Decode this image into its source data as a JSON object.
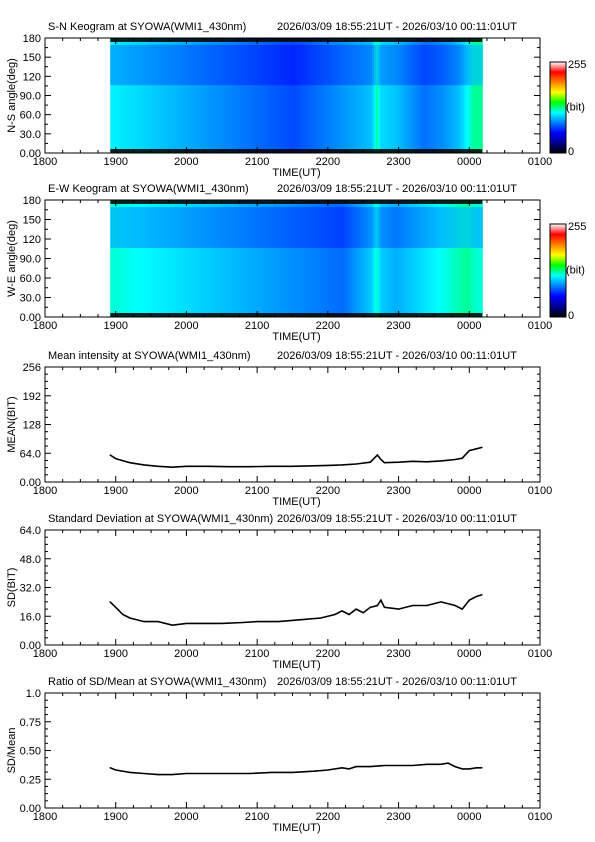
{
  "colors": {
    "background": "#ffffff",
    "axes": "#000000",
    "line": "#000000",
    "colormap": [
      "#000000",
      "#000090",
      "#0000ff",
      "#0080ff",
      "#00ffff",
      "#00ff00",
      "#ffff00",
      "#ff8000",
      "#ff0000",
      "#ffffff"
    ]
  },
  "chart_data": [
    {
      "type": "heatmap",
      "title": "S-N Keogram at SYOWA(WMI1_430nm)",
      "time_range": "2026/03/09 18:55:21UT - 2026/03/10 00:11:01UT",
      "xlabel": "TIME(UT)",
      "ylabel": "N-S angle(deg)",
      "x_ticks": [
        "1800",
        "1900",
        "2000",
        "2100",
        "2200",
        "2300",
        "0000",
        "0100"
      ],
      "y_ticks": [
        "0.00",
        "30.0",
        "60.0",
        "90.0",
        "120",
        "150",
        "180"
      ],
      "xlim_hours": [
        18,
        25
      ],
      "ylim": [
        0,
        180
      ],
      "data_x_hours": [
        18.923,
        24.184
      ],
      "colorbar": {
        "min": "0",
        "max": "255",
        "unit": "(bit)"
      },
      "bright_times": [
        18.96,
        21.5,
        22.61,
        22.68,
        22.73,
        22.97,
        23.15,
        23.35,
        23.6,
        23.85,
        24.05
      ],
      "bright_values": [
        0.55,
        0.3,
        0.48,
        0.65,
        0.52,
        0.48,
        0.42,
        0.36,
        0.4,
        0.48,
        0.65
      ]
    },
    {
      "type": "heatmap",
      "title": "E-W Keogram at SYOWA(WMI1_430nm)",
      "time_range": "2026/03/09 18:55:21UT - 2026/03/10 00:11:01UT",
      "xlabel": "TIME(UT)",
      "ylabel": "W-E angle(deg)",
      "x_ticks": [
        "1800",
        "1900",
        "2000",
        "2100",
        "2200",
        "2300",
        "0000",
        "0100"
      ],
      "y_ticks": [
        "0.00",
        "30.0",
        "60.0",
        "90.0",
        "120",
        "150",
        "180"
      ],
      "xlim_hours": [
        18,
        25
      ],
      "ylim": [
        0,
        180
      ],
      "data_x_hours": [
        18.923,
        24.184
      ],
      "colorbar": {
        "min": "0",
        "max": "255",
        "unit": "(bit)"
      },
      "bright_times": [
        18.96,
        22.2,
        22.61,
        22.68,
        22.73,
        22.95,
        23.2,
        23.45,
        23.7,
        23.95,
        24.1
      ],
      "bright_values": [
        0.6,
        0.35,
        0.5,
        0.62,
        0.5,
        0.45,
        0.5,
        0.55,
        0.6,
        0.65,
        0.6
      ]
    },
    {
      "type": "line",
      "title": "Mean intensity at SYOWA(WMI1_430nm)",
      "time_range": "2026/03/09 18:55:21UT - 2026/03/10 00:11:01UT",
      "xlabel": "TIME(UT)",
      "ylabel": "MEAN(BIT)",
      "x_ticks": [
        "1800",
        "1900",
        "2000",
        "2100",
        "2200",
        "2300",
        "0000",
        "0100"
      ],
      "y_ticks": [
        "0.00",
        "64.0",
        "128",
        "192",
        "256"
      ],
      "xlim_hours": [
        18,
        25
      ],
      "ylim": [
        0,
        256
      ],
      "x": [
        18.92,
        19.0,
        19.2,
        19.4,
        19.6,
        19.8,
        20.0,
        20.3,
        20.6,
        20.9,
        21.2,
        21.5,
        21.8,
        22.0,
        22.2,
        22.4,
        22.6,
        22.7,
        22.75,
        22.8,
        23.0,
        23.2,
        23.4,
        23.6,
        23.8,
        23.9,
        24.0,
        24.1,
        24.18
      ],
      "series": [
        {
          "values": [
            60,
            52,
            43,
            38,
            35,
            33,
            35,
            35,
            34,
            34,
            35,
            35,
            36,
            37,
            38,
            40,
            44,
            60,
            50,
            43,
            44,
            46,
            45,
            47,
            50,
            53,
            70,
            74,
            77
          ]
        }
      ]
    },
    {
      "type": "line",
      "title": "Standard Deviation at SYOWA(WMI1_430nm)",
      "time_range": "2026/03/09 18:55:21UT - 2026/03/10 00:11:01UT",
      "xlabel": "TIME(UT)",
      "ylabel": "SD(BIT)",
      "x_ticks": [
        "1800",
        "1900",
        "2000",
        "2100",
        "2200",
        "2300",
        "0000",
        "0100"
      ],
      "y_ticks": [
        "0.00",
        "16.0",
        "32.0",
        "48.0",
        "64.0"
      ],
      "xlim_hours": [
        18,
        25
      ],
      "ylim": [
        0,
        64
      ],
      "x": [
        18.92,
        19.0,
        19.1,
        19.2,
        19.4,
        19.6,
        19.8,
        20.0,
        20.2,
        20.5,
        20.8,
        21.0,
        21.3,
        21.6,
        21.9,
        22.1,
        22.2,
        22.3,
        22.4,
        22.5,
        22.6,
        22.7,
        22.75,
        22.8,
        23.0,
        23.2,
        23.4,
        23.6,
        23.8,
        23.9,
        24.0,
        24.1,
        24.18
      ],
      "series": [
        {
          "values": [
            24,
            21,
            17,
            15,
            13,
            13,
            11,
            12,
            12,
            12,
            12.5,
            13,
            13,
            14,
            15,
            17,
            19,
            17,
            20,
            18,
            21,
            22,
            25,
            21,
            20,
            22,
            22,
            24,
            22,
            20,
            25,
            27,
            28
          ]
        }
      ]
    },
    {
      "type": "line",
      "title": "Ratio of SD/Mean at SYOWA(WMI1_430nm)",
      "time_range": "2026/03/09 18:55:21UT - 2026/03/10 00:11:01UT",
      "xlabel": "TIME(UT)",
      "ylabel": "SD/Mean",
      "x_ticks": [
        "1800",
        "1900",
        "2000",
        "2100",
        "2200",
        "2300",
        "0000",
        "0100"
      ],
      "y_ticks": [
        "0.00",
        "0.25",
        "0.50",
        "0.75",
        "1.0"
      ],
      "xlim_hours": [
        18,
        25
      ],
      "ylim": [
        0,
        1
      ],
      "x": [
        18.92,
        19.0,
        19.2,
        19.4,
        19.6,
        19.8,
        20.0,
        20.3,
        20.6,
        20.9,
        21.2,
        21.5,
        21.8,
        22.0,
        22.2,
        22.3,
        22.4,
        22.6,
        22.8,
        23.0,
        23.2,
        23.4,
        23.6,
        23.7,
        23.8,
        23.9,
        24.0,
        24.1,
        24.18
      ],
      "series": [
        {
          "values": [
            0.35,
            0.33,
            0.31,
            0.3,
            0.29,
            0.29,
            0.3,
            0.3,
            0.3,
            0.3,
            0.31,
            0.31,
            0.32,
            0.33,
            0.35,
            0.34,
            0.36,
            0.36,
            0.37,
            0.37,
            0.37,
            0.38,
            0.38,
            0.39,
            0.36,
            0.34,
            0.34,
            0.35,
            0.35
          ]
        }
      ]
    }
  ]
}
